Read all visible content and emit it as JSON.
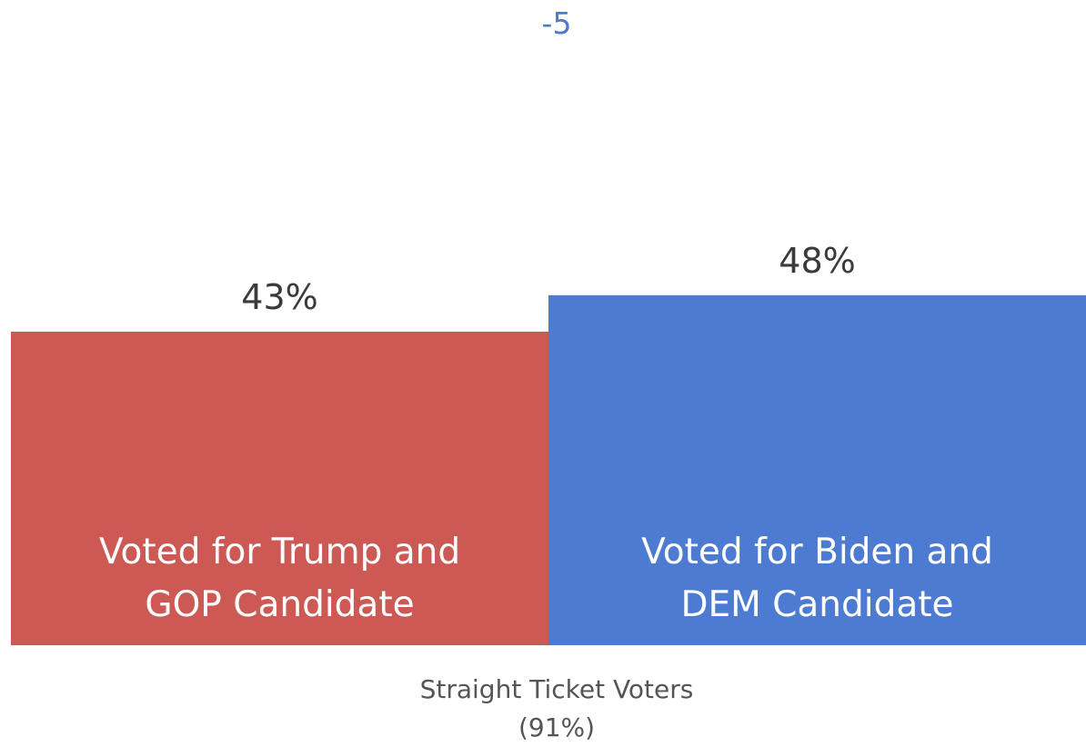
{
  "chart_data": {
    "type": "bar",
    "annotation": "-5",
    "category": [
      "Straight Ticket Voters",
      "(91%)"
    ],
    "series": [
      {
        "name": "Voted for Trump and GOP Candidate",
        "label_lines": [
          "Voted for Trump and",
          "GOP Candidate"
        ],
        "value": 43,
        "value_label": "43%",
        "color": "#cd5955"
      },
      {
        "name": "Voted for Biden and DEM Candidate",
        "label_lines": [
          "Voted for Biden and",
          "DEM Candidate"
        ],
        "value": 48,
        "value_label": "48%",
        "color": "#4d7bd1"
      }
    ],
    "ylim": [
      0,
      70
    ],
    "grid": false,
    "legend": "none"
  }
}
